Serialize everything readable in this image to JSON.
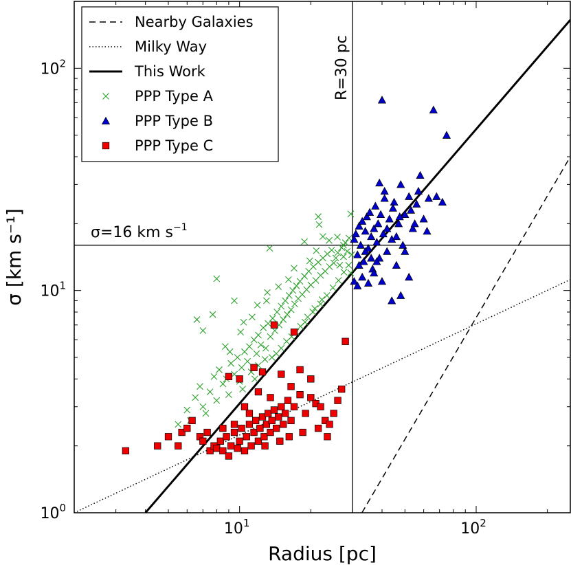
{
  "chart_data": {
    "type": "scatter",
    "xlabel": "Radius  [pc]",
    "ylabel": "σ  [km  s⁻¹]",
    "xscale": "log",
    "yscale": "log",
    "xlim": [
      2,
      250
    ],
    "ylim": [
      1,
      200
    ],
    "x_ticks": [
      {
        "value": 10,
        "base": "10",
        "exp": "1"
      },
      {
        "value": 100,
        "base": "10",
        "exp": "2"
      }
    ],
    "y_ticks": [
      {
        "value": 1,
        "base": "10",
        "exp": "0"
      },
      {
        "value": 10,
        "base": "10",
        "exp": "1"
      },
      {
        "value": 100,
        "base": "10",
        "exp": "2"
      }
    ],
    "grid": false,
    "legend_position": "top-left",
    "annotations": {
      "vertical_line": {
        "x": 30,
        "text": "R=30  pc"
      },
      "horizontal_line": {
        "y": 16,
        "text_main": "σ=16  km  s",
        "text_sup": "−1"
      }
    },
    "lines": [
      {
        "name": "Nearby Galaxies",
        "style": "dashed",
        "points": [
          [
            32.9,
            1.0
          ],
          [
            250,
            40
          ]
        ]
      },
      {
        "name": "Milky Way",
        "style": "dotted",
        "points": [
          [
            2,
            1.0
          ],
          [
            250,
            11.2
          ]
        ]
      },
      {
        "name": "This Work",
        "style": "solid",
        "points": [
          [
            4.0,
            1.0
          ],
          [
            250,
            165
          ]
        ]
      }
    ],
    "series": [
      {
        "name": "PPP Type A",
        "marker": "x",
        "color": "#2ca02c",
        "points": [
          [
            5.5,
            2.5
          ],
          [
            6.0,
            2.9
          ],
          [
            6.2,
            2.6
          ],
          [
            6.5,
            3.3
          ],
          [
            6.8,
            3.7
          ],
          [
            7.0,
            3.0
          ],
          [
            7.2,
            2.8
          ],
          [
            7.5,
            3.5
          ],
          [
            7.8,
            4.1
          ],
          [
            8.0,
            3.2
          ],
          [
            8.2,
            4.4
          ],
          [
            8.5,
            3.8
          ],
          [
            8.8,
            4.0
          ],
          [
            9.0,
            3.4
          ],
          [
            9.2,
            4.7
          ],
          [
            9.5,
            4.2
          ],
          [
            9.8,
            5.0
          ],
          [
            10.0,
            3.9
          ],
          [
            10.2,
            4.5
          ],
          [
            10.5,
            5.3
          ],
          [
            10.8,
            4.8
          ],
          [
            11.0,
            5.6
          ],
          [
            11.2,
            4.3
          ],
          [
            11.5,
            6.0
          ],
          [
            11.8,
            5.2
          ],
          [
            12.0,
            6.3
          ],
          [
            12.3,
            5.7
          ],
          [
            12.6,
            6.8
          ],
          [
            12.9,
            5.5
          ],
          [
            13.2,
            7.1
          ],
          [
            13.5,
            6.2
          ],
          [
            13.8,
            7.5
          ],
          [
            14.1,
            6.6
          ],
          [
            14.4,
            8.0
          ],
          [
            14.7,
            7.0
          ],
          [
            15.0,
            8.5
          ],
          [
            15.3,
            7.4
          ],
          [
            15.6,
            9.0
          ],
          [
            15.9,
            7.8
          ],
          [
            16.2,
            9.5
          ],
          [
            16.5,
            8.2
          ],
          [
            16.8,
            10.0
          ],
          [
            17.1,
            8.7
          ],
          [
            17.4,
            10.5
          ],
          [
            17.7,
            9.2
          ],
          [
            18.0,
            11.0
          ],
          [
            18.4,
            9.6
          ],
          [
            18.8,
            11.6
          ],
          [
            19.2,
            10.1
          ],
          [
            19.6,
            12.2
          ],
          [
            20.0,
            10.6
          ],
          [
            20.5,
            12.8
          ],
          [
            21.0,
            11.1
          ],
          [
            21.5,
            13.4
          ],
          [
            22.0,
            11.7
          ],
          [
            22.5,
            14.0
          ],
          [
            23.0,
            12.2
          ],
          [
            23.5,
            14.6
          ],
          [
            24.0,
            12.8
          ],
          [
            24.5,
            15.2
          ],
          [
            25.0,
            13.3
          ],
          [
            25.5,
            14.0
          ],
          [
            26.0,
            14.8
          ],
          [
            26.5,
            13.0
          ],
          [
            27.0,
            15.6
          ],
          [
            27.5,
            14.2
          ],
          [
            28.0,
            16.4
          ],
          [
            28.5,
            15.0
          ],
          [
            29.0,
            17.2
          ],
          [
            29.5,
            12.0
          ],
          [
            29.8,
            14.5
          ],
          [
            6.6,
            7.4
          ],
          [
            7.0,
            6.6
          ],
          [
            7.7,
            7.8
          ],
          [
            8.0,
            11.3
          ],
          [
            9.5,
            9.0
          ],
          [
            10.4,
            7.2
          ],
          [
            11.9,
            8.6
          ],
          [
            13.1,
            9.8
          ],
          [
            13.4,
            15.5
          ],
          [
            17.0,
            12.6
          ],
          [
            21.5,
            21.5
          ],
          [
            21.7,
            19.8
          ],
          [
            22.5,
            17.5
          ],
          [
            18.8,
            16.6
          ],
          [
            27.5,
            16.0
          ],
          [
            29.5,
            22.1
          ],
          [
            9.1,
            5.3
          ],
          [
            10.3,
            3.6
          ],
          [
            11.6,
            4.0
          ],
          [
            12.8,
            4.9
          ],
          [
            14.3,
            5.2
          ],
          [
            15.8,
            5.9
          ],
          [
            17.3,
            6.5
          ],
          [
            18.9,
            7.2
          ],
          [
            20.4,
            8.0
          ],
          [
            22.0,
            8.7
          ],
          [
            23.4,
            9.5
          ],
          [
            24.8,
            10.3
          ],
          [
            26.2,
            11.1
          ],
          [
            27.6,
            12.1
          ],
          [
            28.9,
            13.0
          ],
          [
            16.1,
            11.2
          ],
          [
            14.6,
            10.4
          ],
          [
            13.0,
            9.0
          ],
          [
            11.3,
            7.6
          ],
          [
            10.1,
            6.5
          ],
          [
            8.7,
            5.6
          ],
          [
            19.8,
            13.6
          ],
          [
            21.1,
            15.1
          ],
          [
            23.9,
            16.8
          ],
          [
            25.9,
            17.4
          ],
          [
            12.0,
            4.6
          ],
          [
            13.7,
            5.0
          ],
          [
            15.0,
            5.5
          ],
          [
            16.6,
            6.2
          ],
          [
            18.1,
            6.9
          ],
          [
            19.4,
            7.6
          ],
          [
            20.8,
            8.3
          ],
          [
            22.3,
            9.1
          ]
        ]
      },
      {
        "name": "PPP Type B",
        "marker": "triangle",
        "color": "#0000cc",
        "points": [
          [
            30.5,
            17.0
          ],
          [
            31.0,
            18.0
          ],
          [
            31.5,
            14.5
          ],
          [
            32.0,
            19.5
          ],
          [
            32.5,
            16.0
          ],
          [
            33.0,
            20.5
          ],
          [
            33.5,
            13.5
          ],
          [
            34.0,
            18.5
          ],
          [
            34.5,
            21.5
          ],
          [
            35.0,
            15.5
          ],
          [
            35.5,
            22.5
          ],
          [
            36.0,
            17.5
          ],
          [
            36.5,
            12.5
          ],
          [
            37.0,
            19.0
          ],
          [
            37.5,
            24.0
          ],
          [
            38.0,
            16.5
          ],
          [
            38.5,
            20.0
          ],
          [
            39.0,
            14.0
          ],
          [
            39.5,
            22.0
          ],
          [
            40.0,
            72.0
          ],
          [
            40.5,
            18.0
          ],
          [
            41.0,
            26.0
          ],
          [
            42.0,
            15.0
          ],
          [
            43.0,
            21.0
          ],
          [
            44.0,
            17.0
          ],
          [
            45.0,
            25.0
          ],
          [
            46.0,
            13.0
          ],
          [
            47.0,
            20.0
          ],
          [
            48.0,
            30.0
          ],
          [
            49.0,
            16.0
          ],
          [
            50.0,
            22.0
          ],
          [
            52.0,
            26.5
          ],
          [
            54.0,
            19.0
          ],
          [
            56.0,
            24.5
          ],
          [
            58.0,
            33.0
          ],
          [
            60.0,
            21.0
          ],
          [
            63.0,
            26.0
          ],
          [
            66.0,
            65.0
          ],
          [
            68.0,
            26.5
          ],
          [
            72.0,
            25.0
          ],
          [
            75.0,
            50.0
          ],
          [
            30.5,
            11.0
          ],
          [
            31.5,
            10.5
          ],
          [
            33.0,
            11.5
          ],
          [
            35.0,
            10.8
          ],
          [
            37.0,
            12.0
          ],
          [
            40.0,
            11.0
          ],
          [
            44.0,
            9.0
          ],
          [
            48.0,
            9.5
          ],
          [
            52.0,
            11.5
          ],
          [
            32.0,
            13.0
          ],
          [
            34.0,
            15.0
          ],
          [
            36.0,
            14.0
          ],
          [
            38.0,
            13.5
          ],
          [
            42.0,
            19.0
          ],
          [
            46.0,
            17.5
          ],
          [
            50.0,
            15.0
          ],
          [
            55.0,
            20.0
          ],
          [
            62.0,
            18.5
          ],
          [
            39.0,
            30.5
          ],
          [
            41.0,
            28.0
          ],
          [
            44.5,
            23.5
          ],
          [
            47.5,
            21.5
          ],
          [
            53.0,
            23.0
          ],
          [
            57.0,
            28.0
          ]
        ]
      },
      {
        "name": "PPP Type C",
        "marker": "square",
        "color": "#ee0000",
        "points": [
          [
            3.3,
            1.9
          ],
          [
            4.5,
            2.0
          ],
          [
            5.0,
            2.2
          ],
          [
            5.5,
            2.0
          ],
          [
            5.7,
            2.3
          ],
          [
            6.0,
            2.4
          ],
          [
            6.3,
            2.6
          ],
          [
            6.8,
            2.2
          ],
          [
            7.0,
            2.1
          ],
          [
            7.3,
            2.3
          ],
          [
            7.5,
            1.9
          ],
          [
            7.8,
            2.0
          ],
          [
            8.0,
            1.95
          ],
          [
            8.3,
            2.1
          ],
          [
            8.5,
            1.9
          ],
          [
            8.8,
            2.2
          ],
          [
            9.0,
            1.8
          ],
          [
            9.2,
            2.0
          ],
          [
            9.5,
            2.3
          ],
          [
            9.8,
            1.95
          ],
          [
            10.0,
            2.1
          ],
          [
            10.2,
            2.4
          ],
          [
            10.5,
            1.9
          ],
          [
            10.7,
            2.2
          ],
          [
            11.0,
            2.5
          ],
          [
            11.2,
            2.0
          ],
          [
            11.5,
            2.3
          ],
          [
            11.7,
            2.6
          ],
          [
            12.0,
            2.1
          ],
          [
            12.2,
            2.4
          ],
          [
            12.5,
            2.7
          ],
          [
            12.7,
            2.2
          ],
          [
            13.0,
            2.5
          ],
          [
            13.2,
            2.8
          ],
          [
            13.5,
            2.3
          ],
          [
            13.7,
            2.6
          ],
          [
            14.0,
            2.9
          ],
          [
            14.3,
            2.4
          ],
          [
            14.6,
            2.7
          ],
          [
            15.0,
            3.0
          ],
          [
            15.3,
            2.5
          ],
          [
            15.6,
            2.8
          ],
          [
            16.0,
            3.2
          ],
          [
            16.5,
            2.6
          ],
          [
            17.0,
            3.0
          ],
          [
            18.0,
            3.4
          ],
          [
            19.0,
            2.8
          ],
          [
            20.0,
            3.3
          ],
          [
            21.0,
            3.1
          ],
          [
            22.0,
            3.0
          ],
          [
            23.0,
            2.6
          ],
          [
            24.0,
            2.5
          ],
          [
            25.0,
            2.8
          ],
          [
            26.0,
            3.2
          ],
          [
            27.0,
            3.6
          ],
          [
            28.0,
            5.9
          ],
          [
            14.0,
            7.0
          ],
          [
            17.0,
            6.5
          ],
          [
            11.5,
            4.5
          ],
          [
            12.5,
            4.3
          ],
          [
            10.0,
            4.0
          ],
          [
            9.0,
            4.1
          ],
          [
            15.0,
            4.2
          ],
          [
            16.5,
            3.7
          ],
          [
            18.0,
            4.4
          ],
          [
            20.0,
            4.0
          ],
          [
            12.0,
            3.5
          ],
          [
            13.5,
            3.3
          ],
          [
            10.5,
            3.0
          ],
          [
            11.0,
            2.8
          ],
          [
            8.5,
            2.4
          ],
          [
            9.5,
            2.5
          ],
          [
            12.8,
            2.0
          ],
          [
            14.8,
            2.1
          ],
          [
            16.2,
            2.2
          ],
          [
            18.5,
            2.3
          ],
          [
            21.5,
            2.4
          ],
          [
            23.5,
            2.2
          ]
        ]
      }
    ]
  }
}
